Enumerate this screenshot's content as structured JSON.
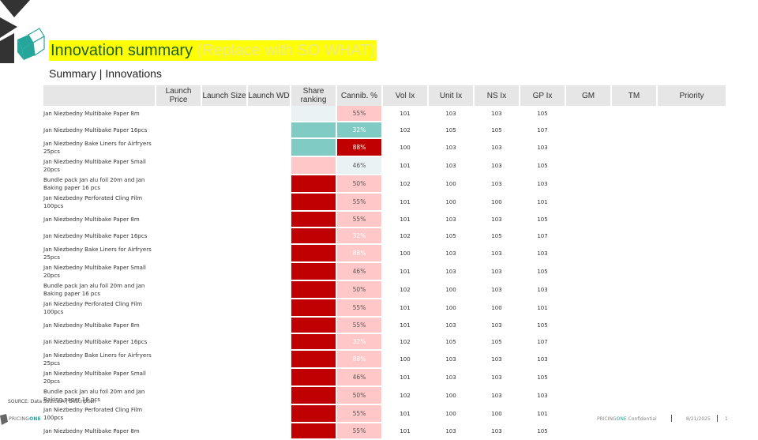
{
  "title": "Innovation summary",
  "title_hint": "(Replace with SO WHAT)",
  "subtitle": "Summary | Innovations",
  "logo_letters": "ONE",
  "columns": [
    "",
    "Launch Price",
    "Launch Size",
    "Launch WD",
    "Share ranking",
    "Cannib. %",
    "Vol Ix",
    "Unit Ix",
    "NS Ix",
    "GP Ix",
    "GM",
    "TM",
    "Priority"
  ],
  "rows": [
    {
      "name": "Jan Niezbedny Multibake Paper 8m",
      "share_color": "#e9f3f3",
      "cann": "55%",
      "cann_color": "#ffc7c7",
      "cann_text_color": "#555555",
      "vol": "101",
      "unit": "103",
      "ns": "103",
      "gp": "105"
    },
    {
      "name": "Jan Niezbedny Multibake Paper 16pcs",
      "share_color": "#80cbc4",
      "cann": "32%",
      "cann_color": "#80cbc4",
      "cann_text_color": "#ffffff",
      "vol": "102",
      "unit": "105",
      "ns": "105",
      "gp": "107"
    },
    {
      "name": "Jan Niezbedny Bake Liners for Airfryers 25pcs",
      "share_color": "#80cbc4",
      "cann": "88%",
      "cann_color": "#c00000",
      "cann_text_color": "#ffffff",
      "vol": "100",
      "unit": "103",
      "ns": "103",
      "gp": "103"
    },
    {
      "name": "Jan Niezbedny Multibake Paper Small 20pcs",
      "share_color": "#ffc7c7",
      "cann": "46%",
      "cann_color": "#e9f3f3",
      "cann_text_color": "#555555",
      "vol": "101",
      "unit": "103",
      "ns": "103",
      "gp": "105"
    },
    {
      "name": "Bundle pack Jan alu foil 20m and Jan Baking paper 16 pcs",
      "share_color": "#c00000",
      "cann": "50%",
      "cann_color": "#ffc7c7",
      "cann_text_color": "#555555",
      "vol": "102",
      "unit": "100",
      "ns": "103",
      "gp": "103"
    },
    {
      "name": "Jan Niezbedny Perforated Cling Film 100pcs",
      "share_color": "#c00000",
      "cann": "55%",
      "cann_color": "#ffc7c7",
      "cann_text_color": "#555555",
      "vol": "101",
      "unit": "100",
      "ns": "100",
      "gp": "101"
    },
    {
      "name": "Jan Niezbedny Multibake Paper 8m",
      "share_color": "#c00000",
      "cann": "55%",
      "cann_color": "#ffc7c7",
      "cann_text_color": "#555555",
      "vol": "101",
      "unit": "103",
      "ns": "103",
      "gp": "105"
    },
    {
      "name": "Jan Niezbedny Multibake Paper 16pcs",
      "share_color": "#c00000",
      "cann": "32%",
      "cann_color": "#ffc7c7",
      "cann_text_color": "#ffffff",
      "vol": "102",
      "unit": "105",
      "ns": "105",
      "gp": "107"
    },
    {
      "name": "Jan Niezbedny Bake Liners for Airfryers 25pcs",
      "share_color": "#c00000",
      "cann": "88%",
      "cann_color": "#ffc7c7",
      "cann_text_color": "#ffffff",
      "vol": "100",
      "unit": "103",
      "ns": "103",
      "gp": "103"
    },
    {
      "name": "Jan Niezbedny Multibake Paper Small 20pcs",
      "share_color": "#c00000",
      "cann": "46%",
      "cann_color": "#ffc7c7",
      "cann_text_color": "#555555",
      "vol": "101",
      "unit": "103",
      "ns": "103",
      "gp": "105"
    },
    {
      "name": "Bundle pack Jan alu foil 20m and Jan Baking paper 16 pcs",
      "share_color": "#c00000",
      "cann": "50%",
      "cann_color": "#ffc7c7",
      "cann_text_color": "#555555",
      "vol": "102",
      "unit": "100",
      "ns": "103",
      "gp": "103"
    },
    {
      "name": "Jan Niezbedny Perforated Cling Film 100pcs",
      "share_color": "#c00000",
      "cann": "55%",
      "cann_color": "#ffc7c7",
      "cann_text_color": "#555555",
      "vol": "101",
      "unit": "100",
      "ns": "100",
      "gp": "101"
    },
    {
      "name": "Jan Niezbedny Multibake Paper 8m",
      "share_color": "#c00000",
      "cann": "55%",
      "cann_color": "#ffc7c7",
      "cann_text_color": "#555555",
      "vol": "101",
      "unit": "103",
      "ns": "103",
      "gp": "105"
    },
    {
      "name": "Jan Niezbedny Multibake Paper 16pcs",
      "share_color": "#c00000",
      "cann": "32%",
      "cann_color": "#ffc7c7",
      "cann_text_color": "#ffffff",
      "vol": "102",
      "unit": "105",
      "ns": "105",
      "gp": "107"
    },
    {
      "name": "Jan Niezbedny Bake Liners for Airfryers 25pcs",
      "share_color": "#c00000",
      "cann": "88%",
      "cann_color": "#ffc7c7",
      "cann_text_color": "#ffffff",
      "vol": "100",
      "unit": "103",
      "ns": "103",
      "gp": "103"
    },
    {
      "name": "Jan Niezbedny Multibake Paper Small 20pcs",
      "share_color": "#c00000",
      "cann": "46%",
      "cann_color": "#ffc7c7",
      "cann_text_color": "#555555",
      "vol": "101",
      "unit": "103",
      "ns": "103",
      "gp": "105"
    },
    {
      "name": "Bundle pack Jan alu foil 20m and Jan Baking paper 16 pcs",
      "share_color": "#c00000",
      "cann": "50%",
      "cann_color": "#ffc7c7",
      "cann_text_color": "#555555",
      "vol": "102",
      "unit": "100",
      "ns": "103",
      "gp": "103"
    },
    {
      "name": "Jan Niezbedny Perforated Cling Film 100pcs",
      "share_color": "#c00000",
      "cann": "55%",
      "cann_color": "#ffc7c7",
      "cann_text_color": "#555555",
      "vol": "101",
      "unit": "100",
      "ns": "100",
      "gp": "101"
    },
    {
      "name": "Jan Niezbedny Multibake Paper 8m",
      "share_color": "#c00000",
      "cann": "55%",
      "cann_color": "#ffc7c7",
      "cann_text_color": "#555555",
      "vol": "101",
      "unit": "103",
      "ns": "103",
      "gp": "105"
    }
  ],
  "footer": {
    "source": "SOURCE: Data Source A | Description",
    "brand_prefix": "PRICING",
    "brand_suffix": "ONE",
    "conf_prefix": "PRICING",
    "conf_brand": "ONE",
    "conf_suffix": " Confidential",
    "date": "8/21/2025",
    "page": "1"
  }
}
